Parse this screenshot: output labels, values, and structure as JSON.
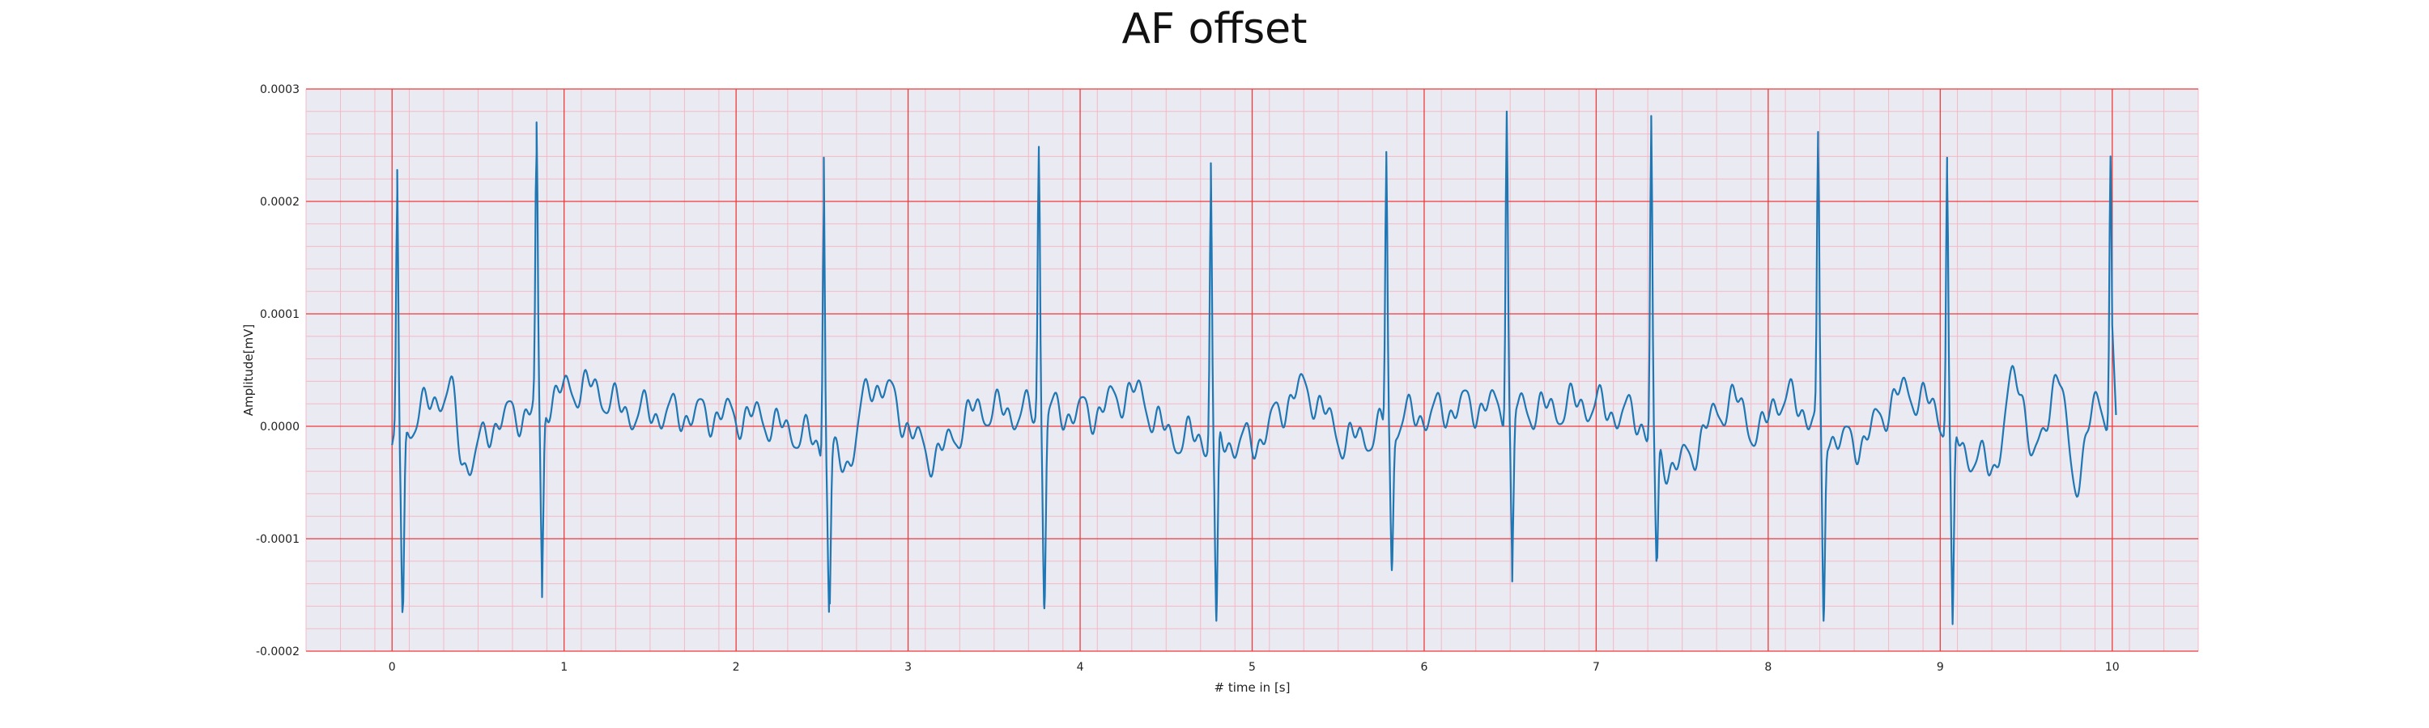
{
  "chart_data": {
    "type": "line",
    "title": "AF offset",
    "xlabel": "# time in [s]",
    "ylabel": "Amplitude[mV]",
    "xlim": [
      -0.5,
      10.5
    ],
    "ylim": [
      -0.0002,
      0.0003
    ],
    "x_ticks": [
      0,
      1,
      2,
      3,
      4,
      5,
      6,
      7,
      8,
      9,
      10
    ],
    "y_ticks": [
      -0.0002,
      -0.0001,
      0.0,
      0.0001,
      0.0002,
      0.0003
    ],
    "x_tick_labels": [
      "0",
      "1",
      "2",
      "3",
      "4",
      "5",
      "6",
      "7",
      "8",
      "9",
      "10"
    ],
    "y_tick_labels": [
      "-0.0002",
      "-0.0001",
      "0.0000",
      "0.0001",
      "0.0002",
      "0.0003"
    ],
    "grid": true,
    "minor_grid": true,
    "colors": {
      "line": "#1f77b4",
      "plot_bg": "#eaeaf2",
      "major_grid": "#ee3b3b",
      "minor_grid": "#f4b9c4"
    },
    "series": [
      {
        "r_peaks": [
          {
            "t": 0.03,
            "peak": 0.000228,
            "dip": -0.000162
          },
          {
            "t": 0.84,
            "peak": 0.000243,
            "dip": -0.000152
          },
          {
            "t": 2.51,
            "peak": 0.000239,
            "dip": -0.00014
          },
          {
            "t": 3.76,
            "peak": 0.000243,
            "dip": -0.000162
          },
          {
            "t": 4.76,
            "peak": 0.000234,
            "dip": -0.000173
          },
          {
            "t": 5.78,
            "peak": 0.000244,
            "dip": -0.000128
          },
          {
            "t": 6.48,
            "peak": 0.00028,
            "dip": -0.000138
          },
          {
            "t": 7.32,
            "peak": 0.000276,
            "dip": -0.000118
          },
          {
            "t": 8.29,
            "peak": 0.000249,
            "dip": -0.000173
          },
          {
            "t": 9.04,
            "peak": 0.000239,
            "dip": -0.000176
          },
          {
            "t": 9.99,
            "peak": 0.000238,
            "dip": 1e-05
          }
        ],
        "baseline_extrema": [
          {
            "t": 0.18,
            "v": 1.5e-05
          },
          {
            "t": 0.33,
            "v": 3.2e-05
          },
          {
            "t": 0.42,
            "v": -3.2e-05
          },
          {
            "t": 0.65,
            "v": 8e-06
          },
          {
            "t": 1.12,
            "v": 3.5e-05
          },
          {
            "t": 1.4,
            "v": 1.2e-05
          },
          {
            "t": 1.9,
            "v": 1e-05
          },
          {
            "t": 2.12,
            "v": 8e-06
          },
          {
            "t": 2.33,
            "v": -5e-06
          },
          {
            "t": 2.63,
            "v": -3.2e-05
          },
          {
            "t": 2.8,
            "v": 3.8e-05
          },
          {
            "t": 3.15,
            "v": -2.5e-05
          },
          {
            "t": 3.42,
            "v": 1.5e-05
          },
          {
            "t": 3.62,
            "v": 1.2e-05
          },
          {
            "t": 4.05,
            "v": 1.2e-05
          },
          {
            "t": 4.3,
            "v": 3e-05
          },
          {
            "t": 4.55,
            "v": -1e-05
          },
          {
            "t": 4.98,
            "v": -1.5e-05
          },
          {
            "t": 5.3,
            "v": 3.2e-05
          },
          {
            "t": 5.55,
            "v": -1.2e-05
          },
          {
            "t": 6.0,
            "v": 1e-05
          },
          {
            "t": 6.25,
            "v": 1.8e-05
          },
          {
            "t": 6.75,
            "v": 1.5e-05
          },
          {
            "t": 6.9,
            "v": 2e-05
          },
          {
            "t": 7.2,
            "v": 1e-05
          },
          {
            "t": 7.45,
            "v": -3.5e-05
          },
          {
            "t": 7.8,
            "v": 2.2e-05
          },
          {
            "t": 7.95,
            "v": -8e-06
          },
          {
            "t": 8.05,
            "v": 2.5e-05
          },
          {
            "t": 8.5,
            "v": -1.5e-05
          },
          {
            "t": 8.8,
            "v": 3e-05
          },
          {
            "t": 9.3,
            "v": -3.5e-05
          },
          {
            "t": 9.45,
            "v": 4.5e-05
          },
          {
            "t": 9.55,
            "v": -3e-05
          },
          {
            "t": 9.68,
            "v": 4.5e-05
          },
          {
            "t": 9.78,
            "v": -4.5e-05
          },
          {
            "t": 9.92,
            "v": 2e-05
          }
        ]
      }
    ]
  }
}
